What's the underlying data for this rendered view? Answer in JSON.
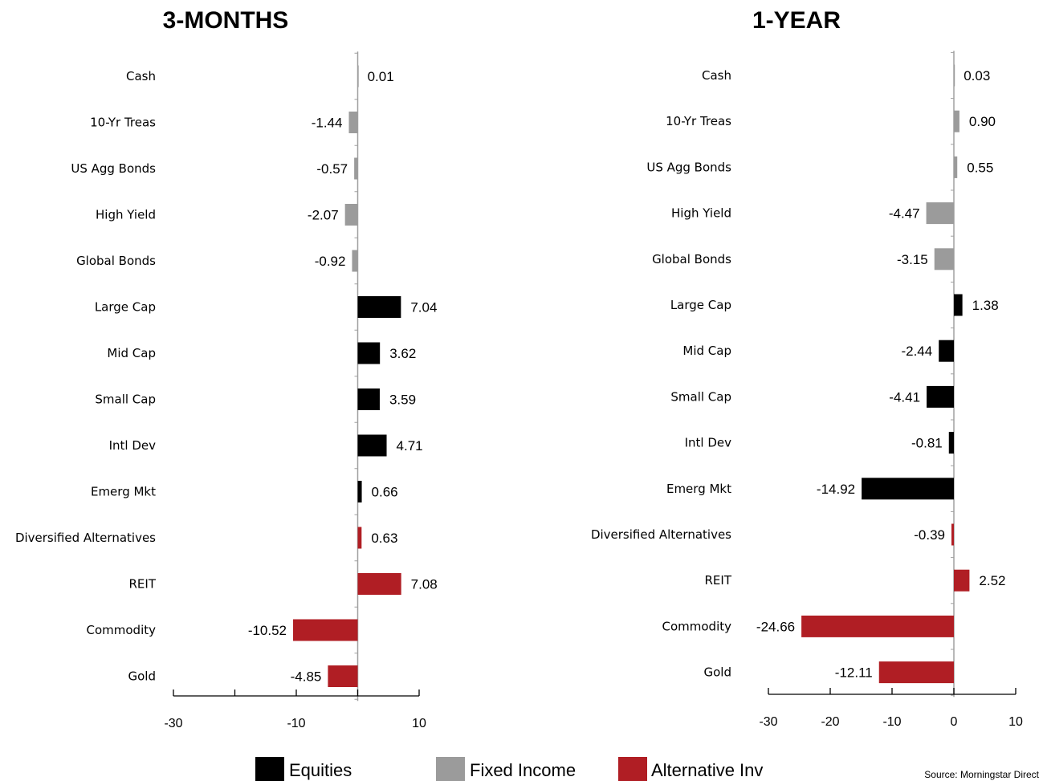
{
  "colors": {
    "equities": "#000000",
    "fixed_income": "#9b9b9b",
    "alternative": "#b01e24"
  },
  "legend": [
    {
      "label": "Equities",
      "color": "#000000"
    },
    {
      "label": "Fixed Income",
      "color": "#9b9b9b"
    },
    {
      "label": "Alternative Inv",
      "color": "#b01e24"
    }
  ],
  "source": "Source: Morningstar Direct",
  "chart_data": [
    {
      "type": "bar",
      "orientation": "horizontal",
      "title": "3-MONTHS",
      "categories": [
        "Cash",
        "10-Yr Treas",
        "US Agg Bonds",
        "High Yield",
        "Global Bonds",
        "Large Cap",
        "Mid Cap",
        "Small Cap",
        "Intl Dev",
        "Emerg Mkt",
        "Diversified Alternatives",
        "REIT",
        "Commodity",
        "Gold"
      ],
      "values": [
        0.01,
        -1.44,
        -0.57,
        -2.07,
        -0.92,
        7.04,
        3.62,
        3.59,
        4.71,
        0.66,
        0.63,
        7.08,
        -10.52,
        -4.85
      ],
      "value_labels": [
        "0.01",
        "-1.44",
        "-0.57",
        "-2.07",
        "-0.92",
        "7.04",
        "3.62",
        "3.59",
        "4.71",
        "0.66",
        "0.63",
        "7.08",
        "-10.52",
        "-4.85"
      ],
      "groups": [
        "fixed_income",
        "fixed_income",
        "fixed_income",
        "fixed_income",
        "fixed_income",
        "equities",
        "equities",
        "equities",
        "equities",
        "equities",
        "alternative",
        "alternative",
        "alternative",
        "alternative"
      ],
      "xlim": [
        -30,
        10
      ],
      "x_ticks": [
        -30,
        -10,
        10
      ],
      "x_tick_labels": [
        "-30",
        "-10",
        "10"
      ]
    },
    {
      "type": "bar",
      "orientation": "horizontal",
      "title": "1-YEAR",
      "categories": [
        "Cash",
        "10-Yr Treas",
        "US Agg Bonds",
        "High Yield",
        "Global Bonds",
        "Large Cap",
        "Mid Cap",
        "Small Cap",
        "Intl Dev",
        "Emerg Mkt",
        "Diversified Alternatives",
        "REIT",
        "Commodity",
        "Gold"
      ],
      "values": [
        0.03,
        0.9,
        0.55,
        -4.47,
        -3.15,
        1.38,
        -2.44,
        -4.41,
        -0.81,
        -14.92,
        -0.39,
        2.52,
        -24.66,
        -12.11
      ],
      "value_labels": [
        "0.03",
        "0.90",
        "0.55",
        "-4.47",
        "-3.15",
        "1.38",
        "-2.44",
        "-4.41",
        "-0.81",
        "-14.92",
        "-0.39",
        "2.52",
        "-24.66",
        "-12.11"
      ],
      "groups": [
        "fixed_income",
        "fixed_income",
        "fixed_income",
        "fixed_income",
        "fixed_income",
        "equities",
        "equities",
        "equities",
        "equities",
        "equities",
        "alternative",
        "alternative",
        "alternative",
        "alternative"
      ],
      "xlim": [
        -30,
        10
      ],
      "x_ticks": [
        -30,
        -20,
        -10,
        0,
        10
      ],
      "x_tick_labels": [
        "-30",
        "-20",
        "-10",
        "0",
        "10"
      ]
    }
  ]
}
